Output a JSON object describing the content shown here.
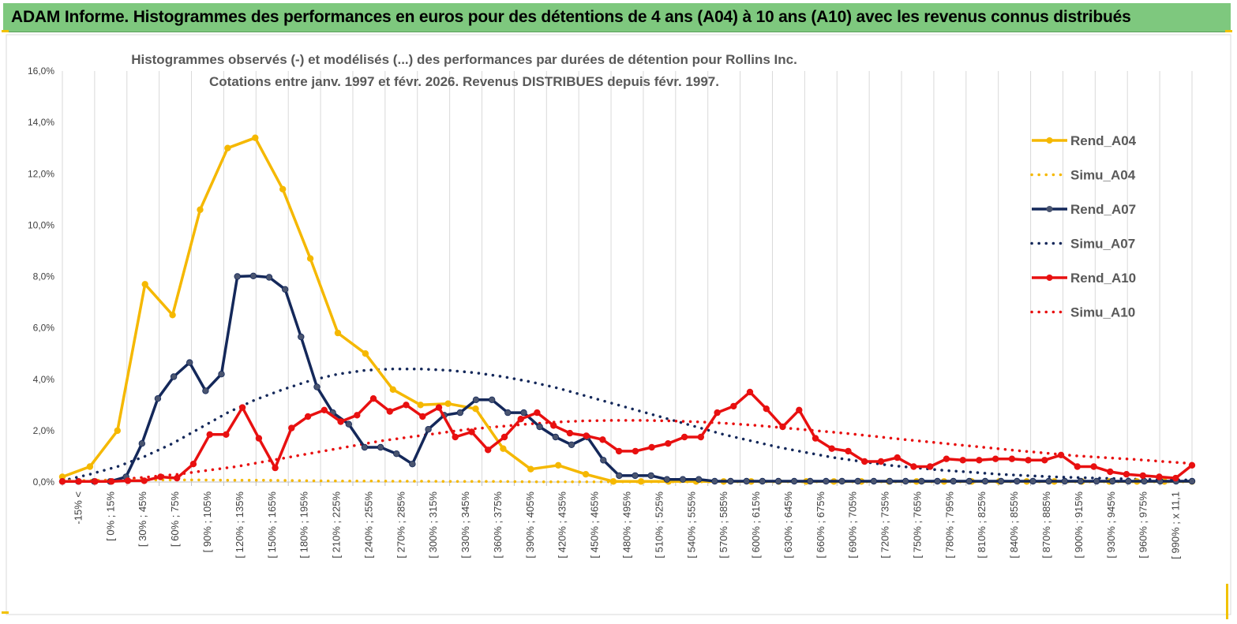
{
  "banner": {
    "title": "ADAM Informe. Histogrammes des performances en euros pour des détentions de 4 ans (A04) à 10 ans (A10) avec les revenus connus distribués"
  },
  "colors": {
    "banner_bg": "#7ec87e",
    "a04": "#f5b800",
    "a07": "#14285a",
    "a10": "#e81010",
    "grid": "#d9d9d9"
  },
  "chart_data": {
    "type": "line",
    "title": [
      "Histogrammes observés (-) et modélisés (...) des performances par durées de détention pour Rollins Inc.",
      "Cotations entre janv. 1997 et févr. 2026. Revenus DISTRIBUES depuis févr. 1997."
    ],
    "ylim": [
      0,
      16
    ],
    "y_ticks": [
      "0,0%",
      "2,0%",
      "4,0%",
      "6,0%",
      "8,0%",
      "10,0%",
      "12,0%",
      "14,0%",
      "16,0%"
    ],
    "grid": "vertical",
    "legend_position": "right",
    "x_tick_labels": [
      "-15% <",
      "[ 0% ; 15%",
      "[ 30% ; 45%",
      "[ 60% ; 75%",
      "[ 90% ; 105%",
      "[ 120% ; 135%",
      "[ 150% ; 165%",
      "[ 180% ; 195%",
      "[ 210% ; 225%",
      "[ 240% ; 255%",
      "[ 270% ; 285%",
      "[ 300% ; 315%",
      "[ 330% ; 345%",
      "[ 360% ; 375%",
      "[ 390% ; 405%",
      "[ 420% ; 435%",
      "[ 450% ; 465%",
      "[ 480% ; 495%",
      "[ 510% ; 525%",
      "[ 540% ; 555%",
      "[ 570% ; 585%",
      "[ 600% ; 615%",
      "[ 630% ; 645%",
      "[ 660% ; 675%",
      "[ 690% ; 705%",
      "[ 720% ; 735%",
      "[ 750% ; 765%",
      "[ 780% ; 795%",
      "[ 810% ; 825%",
      "[ 840% ; 855%",
      "[ 870% ; 885%",
      "[ 900% ; 915%",
      "[ 930% ; 945%",
      "[ 960% ; 975%",
      "[ 990% ; x 11,1"
    ],
    "series": [
      {
        "name": "Rend_A04",
        "style": "solid",
        "color": "#f5b800",
        "values": [
          0.2,
          0.6,
          2.0,
          7.7,
          6.5,
          10.6,
          13.0,
          13.4,
          11.4,
          8.7,
          5.8,
          5.0,
          3.6,
          3.0,
          3.05,
          2.85,
          1.3,
          0.5,
          0.65,
          0.3,
          0.02,
          0.02,
          0.02,
          0.02,
          0.02,
          0.02,
          0.02,
          0.02,
          0.02,
          0.02,
          0.02,
          0.02,
          0.02,
          0.02,
          0.02,
          0.02,
          0.02,
          0.02,
          0.02,
          0.02,
          0.02,
          0.02
        ]
      },
      {
        "name": "Simu_A04",
        "style": "dotted",
        "color": "#f5b800",
        "values": [
          0.05,
          0.06,
          0.07,
          0.08,
          0.08,
          0.08,
          0.07,
          0.07,
          0.06,
          0.05,
          0.04,
          0.04,
          0.03,
          0.03,
          0.02,
          0.02,
          0.02,
          0.01,
          0.01,
          0.01,
          0.01,
          0.01,
          0.01,
          0.01,
          0.01,
          0.01,
          0.01,
          0.01,
          0.01,
          0.01,
          0.01,
          0.01,
          0.01,
          0.01,
          0.01,
          0.01,
          0.01,
          0.01,
          0.01,
          0.01,
          0.01,
          0.01
        ]
      },
      {
        "name": "Rend_A07",
        "style": "solid",
        "color": "#14285a",
        "values": [
          0.02,
          0.02,
          0.02,
          0.02,
          0.2,
          1.5,
          3.25,
          4.1,
          4.65,
          3.55,
          4.2,
          8.0,
          8.02,
          7.97,
          7.5,
          5.65,
          3.7,
          2.7,
          2.25,
          1.35,
          1.35,
          1.1,
          0.7,
          2.05,
          2.6,
          2.7,
          3.2,
          3.2,
          2.7,
          2.7,
          2.15,
          1.75,
          1.45,
          1.75,
          0.85,
          0.25,
          0.25,
          0.25,
          0.1,
          0.1,
          0.1,
          0.03,
          0.03,
          0.03,
          0.03,
          0.03,
          0.03,
          0.03,
          0.03,
          0.03,
          0.03,
          0.03,
          0.03,
          0.03,
          0.03,
          0.03,
          0.03,
          0.03,
          0.03,
          0.03,
          0.03,
          0.03,
          0.03,
          0.03,
          0.03,
          0.03,
          0.03,
          0.03,
          0.03,
          0.03,
          0.03,
          0.03
        ]
      },
      {
        "name": "Simu_A07",
        "style": "dotted",
        "color": "#14285a",
        "values": [
          0.05,
          0.3,
          0.6,
          1.0,
          1.5,
          2.1,
          2.7,
          3.2,
          3.6,
          3.95,
          4.2,
          4.35,
          4.4,
          4.4,
          4.35,
          4.25,
          4.1,
          3.9,
          3.65,
          3.35,
          3.05,
          2.75,
          2.45,
          2.15,
          1.85,
          1.6,
          1.35,
          1.15,
          0.95,
          0.8,
          0.65,
          0.55,
          0.45,
          0.38,
          0.3,
          0.25,
          0.2,
          0.17,
          0.14,
          0.11,
          0.09,
          0.08
        ]
      },
      {
        "name": "Rend_A10",
        "style": "solid",
        "color": "#e81010",
        "values": [
          0.02,
          0.02,
          0.02,
          0.02,
          0.05,
          0.05,
          0.2,
          0.15,
          0.7,
          1.85,
          1.85,
          2.9,
          1.7,
          0.55,
          2.1,
          2.55,
          2.8,
          2.35,
          2.6,
          3.25,
          2.75,
          3.0,
          2.55,
          2.9,
          1.75,
          1.95,
          1.25,
          1.75,
          2.45,
          2.7,
          2.2,
          1.9,
          1.8,
          1.65,
          1.2,
          1.2,
          1.35,
          1.5,
          1.75,
          1.75,
          2.7,
          2.95,
          3.5,
          2.85,
          2.15,
          2.8,
          1.7,
          1.3,
          1.2,
          0.8,
          0.8,
          0.95,
          0.6,
          0.6,
          0.9,
          0.85,
          0.85,
          0.9,
          0.9,
          0.85,
          0.85,
          1.05,
          0.6,
          0.6,
          0.4,
          0.3,
          0.25,
          0.2,
          0.15,
          0.65
        ]
      },
      {
        "name": "Simu_A10",
        "style": "dotted",
        "color": "#e81010",
        "values": [
          0.02,
          0.05,
          0.1,
          0.2,
          0.3,
          0.45,
          0.6,
          0.8,
          1.0,
          1.2,
          1.4,
          1.6,
          1.75,
          1.9,
          2.05,
          2.15,
          2.25,
          2.33,
          2.38,
          2.4,
          2.4,
          2.38,
          2.34,
          2.28,
          2.2,
          2.1,
          2.0,
          1.9,
          1.78,
          1.66,
          1.55,
          1.44,
          1.33,
          1.22,
          1.12,
          1.02,
          0.95,
          0.88,
          0.8,
          0.72
        ]
      }
    ]
  }
}
